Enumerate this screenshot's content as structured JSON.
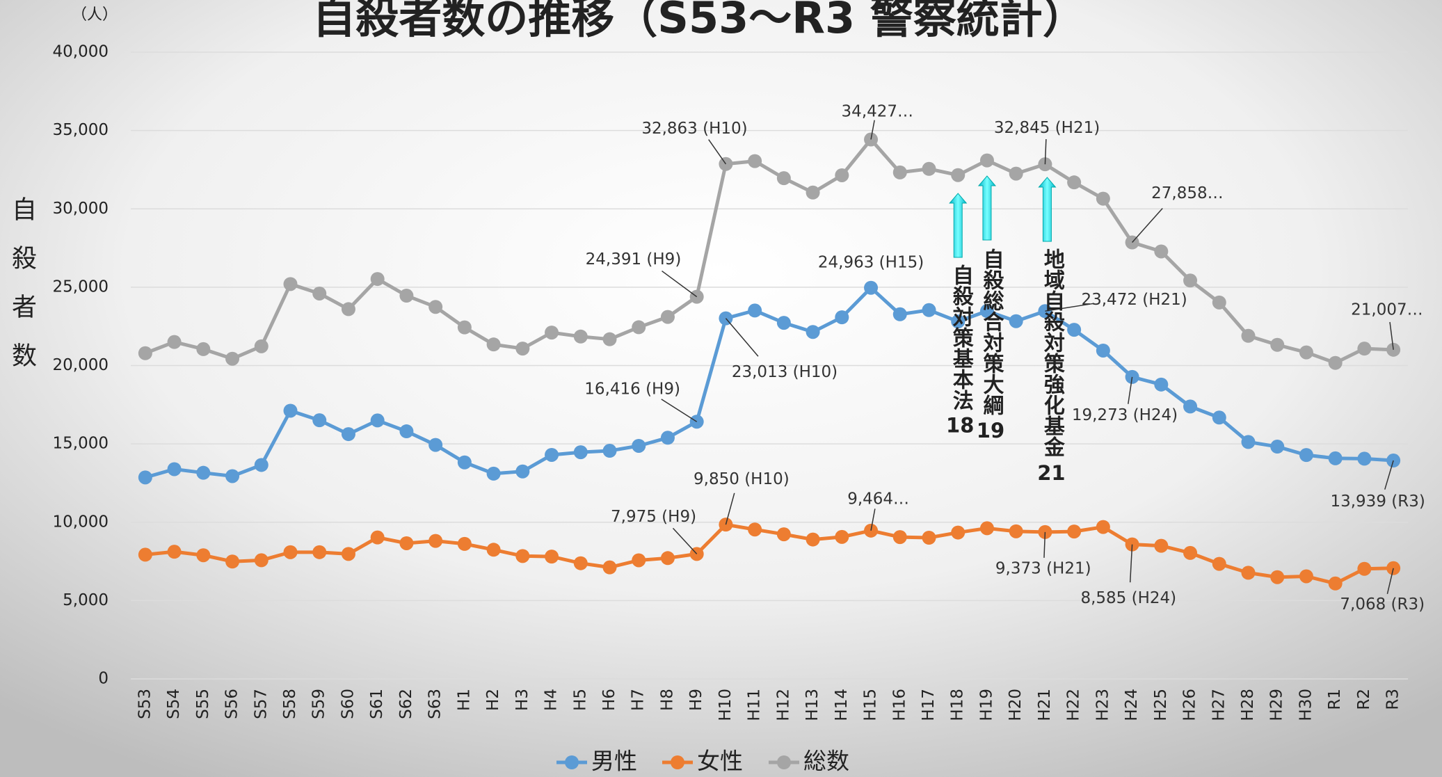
{
  "chart_data": {
    "type": "line",
    "title": "自殺者数の推移（S53〜R3 警察統計）",
    "y_label": "自殺者数",
    "y_unit": "（人）",
    "categories": [
      "S53",
      "S54",
      "S55",
      "S56",
      "S57",
      "S58",
      "S59",
      "S60",
      "S61",
      "S62",
      "S63",
      "H1",
      "H2",
      "H3",
      "H4",
      "H5",
      "H6",
      "H7",
      "H8",
      "H9",
      "H10",
      "H11",
      "H12",
      "H13",
      "H14",
      "H15",
      "H16",
      "H17",
      "H18",
      "H19",
      "H20",
      "H21",
      "H22",
      "H23",
      "H24",
      "H25",
      "H26",
      "H27",
      "H28",
      "H29",
      "H30",
      "R1",
      "R2",
      "R3"
    ],
    "series": [
      {
        "name": "男性",
        "color": "#5b9bd5",
        "values": [
          12859,
          13386,
          13155,
          12942,
          13654,
          17116,
          16508,
          15624,
          16497,
          15802,
          14934,
          13818,
          13102,
          13242,
          14296,
          14468,
          14560,
          14874,
          15393,
          16416,
          23013,
          23512,
          22727,
          22144,
          23080,
          24963,
          23272,
          23540,
          22813,
          23478,
          22831,
          23472,
          22283,
          20955,
          19273,
          18787,
          17386,
          16681,
          15121,
          14826,
          14290,
          14078,
          14055,
          13939
        ],
        "value_labels": [
          null,
          null,
          null,
          null,
          null,
          null,
          null,
          null,
          null,
          null,
          null,
          null,
          null,
          null,
          null,
          null,
          null,
          null,
          null,
          "16,416 (H9)",
          "23,013 (H10)",
          null,
          null,
          null,
          null,
          "24,963 (H15)",
          null,
          null,
          null,
          null,
          null,
          "23,472 (H21)",
          null,
          null,
          "19,273 (H24)",
          null,
          null,
          null,
          null,
          null,
          null,
          null,
          null,
          "13,939 (R3)"
        ]
      },
      {
        "name": "女性",
        "color": "#ed7d31",
        "values": [
          7929,
          8117,
          7893,
          7492,
          7574,
          8086,
          8088,
          7975,
          9027,
          8658,
          8808,
          8618,
          8244,
          7842,
          7808,
          7383,
          7119,
          7571,
          7711,
          7975,
          9850,
          9536,
          9230,
          8898,
          9063,
          9464,
          9053,
          9012,
          9342,
          9615,
          9418,
          9373,
          9407,
          9696,
          8585,
          8496,
          8041,
          7344,
          6776,
          6495,
          6550,
          6091,
          7026,
          7068
        ],
        "value_labels": [
          null,
          null,
          null,
          null,
          null,
          null,
          null,
          null,
          null,
          null,
          null,
          null,
          null,
          null,
          null,
          null,
          null,
          null,
          null,
          "7,975 (H9)",
          "9,850 (H10)",
          null,
          null,
          null,
          null,
          "9,464…",
          null,
          null,
          null,
          null,
          null,
          "9,373 (H21)",
          null,
          null,
          "8,585 (H24)",
          null,
          null,
          null,
          null,
          null,
          null,
          null,
          null,
          "7,068 (R3)"
        ]
      },
      {
        "name": "総数",
        "color": "#a5a5a5",
        "values": [
          20788,
          21503,
          21048,
          20434,
          21228,
          25202,
          24596,
          23599,
          25524,
          24460,
          23742,
          22436,
          21346,
          21084,
          22104,
          21851,
          21679,
          22445,
          23104,
          24391,
          32863,
          33048,
          31957,
          31042,
          32143,
          34427,
          32325,
          32552,
          32155,
          33093,
          32249,
          32845,
          31690,
          30651,
          27858,
          27283,
          25427,
          24025,
          21897,
          21321,
          20840,
          20169,
          21081,
          21007
        ],
        "value_labels": [
          null,
          null,
          null,
          null,
          null,
          null,
          null,
          null,
          null,
          null,
          null,
          null,
          null,
          null,
          null,
          null,
          null,
          null,
          null,
          "24,391 (H9)",
          "32,863 (H10)",
          null,
          null,
          null,
          null,
          "34,427…",
          null,
          null,
          null,
          null,
          null,
          "32,845 (H21)",
          null,
          null,
          "27,858…",
          null,
          null,
          null,
          null,
          null,
          null,
          null,
          null,
          "21,007…"
        ]
      }
    ],
    "ylim": [
      0,
      40000
    ],
    "yticks": [
      0,
      {
        "value": 5000,
        "label": "5,000"
      },
      {
        "value": 10000,
        "label": "10,000"
      },
      {
        "value": 15000,
        "label": "15,000"
      },
      {
        "value": 20000,
        "label": "20,000"
      },
      {
        "value": 25000,
        "label": "25,000"
      },
      {
        "value": 30000,
        "label": "30,000"
      },
      {
        "value": 35000,
        "label": "35,000"
      },
      {
        "value": 40000,
        "label": "40,000"
      }
    ],
    "grid": true,
    "legend": "bottom",
    "annotations": [
      {
        "text": "自殺対策基本法",
        "number": "18",
        "category": "H18"
      },
      {
        "text": "自殺総合対策大綱",
        "number": "19",
        "category": "H19"
      },
      {
        "text": "地域自殺対策強化基金",
        "number": "21",
        "category": "H21"
      }
    ]
  }
}
